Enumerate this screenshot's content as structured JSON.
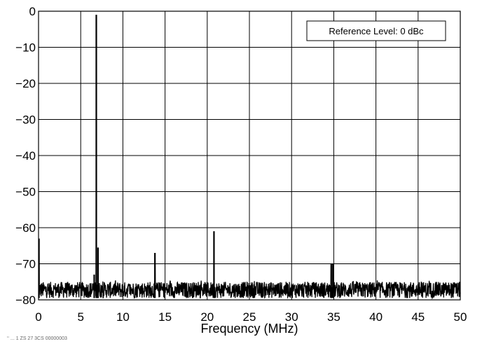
{
  "chart_data": {
    "type": "line",
    "title": "",
    "xlabel": "Frequency (MHz)",
    "ylabel": "",
    "xlim": [
      0,
      50
    ],
    "ylim": [
      -80,
      0
    ],
    "xticks": [
      0,
      5,
      10,
      15,
      20,
      25,
      30,
      35,
      40,
      45,
      50
    ],
    "yticks": [
      0,
      -10,
      -20,
      -30,
      -40,
      -50,
      -60,
      -70,
      -80
    ],
    "grid": true,
    "legend_placement": "top-right",
    "annotation": "Reference Level: 0 dBc",
    "noise_floor_range": [
      -79.5,
      -75
    ],
    "spurs": [
      {
        "x": 0.05,
        "y": -63
      },
      {
        "x": 6.6,
        "y": -73
      },
      {
        "x": 6.85,
        "y": -1
      },
      {
        "x": 7.05,
        "y": -65.5
      },
      {
        "x": 13.8,
        "y": -67
      },
      {
        "x": 20.8,
        "y": -61
      },
      {
        "x": 34.7,
        "y": -70
      },
      {
        "x": 34.9,
        "y": -70
      }
    ],
    "colors": {
      "trace": "#000000",
      "grid": "#000000",
      "background": "#ffffff"
    }
  },
  "footnote": "‘‘ ...  1 ZS 27 3CS 00000003"
}
